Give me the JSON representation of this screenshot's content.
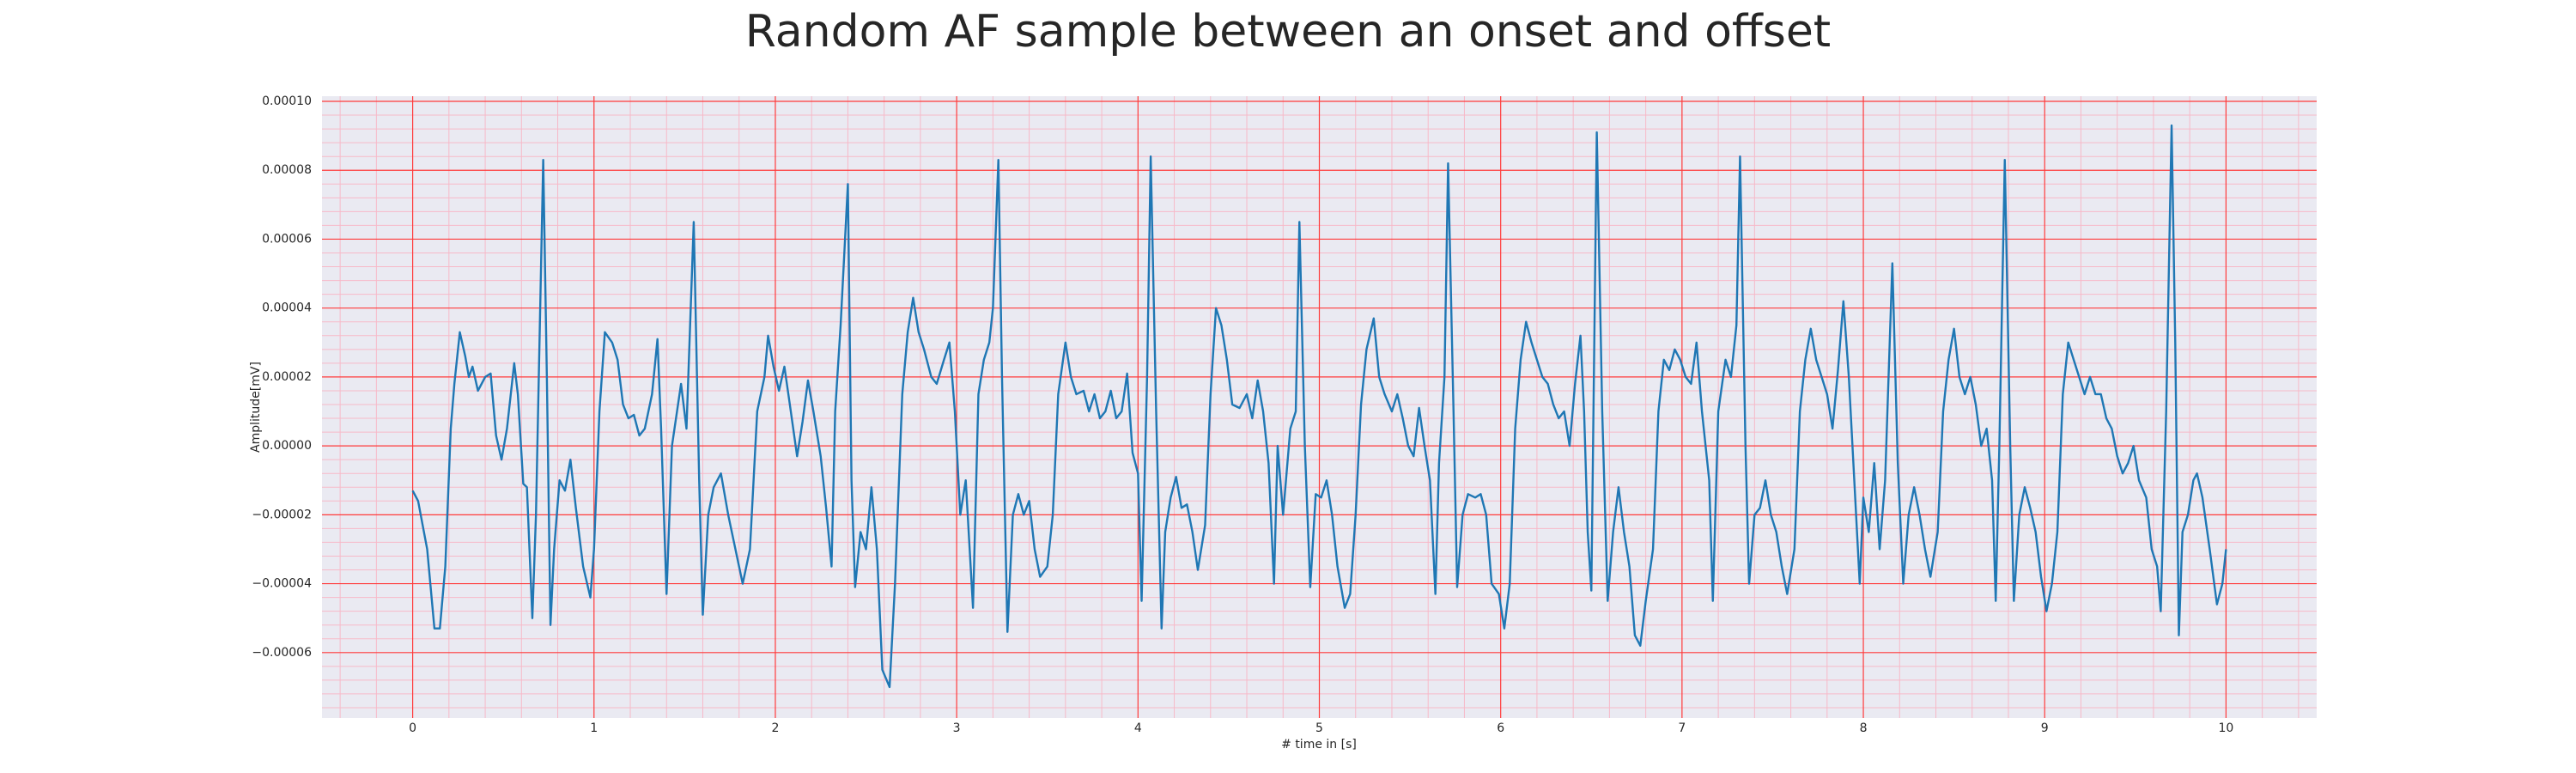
{
  "chart_data": {
    "type": "line",
    "title": "Random AF sample between an onset and offset",
    "xlabel": "# time in [s]",
    "ylabel": "Amplitude[mV]",
    "color": "#1f77b4",
    "grid": true,
    "grid_color": "#ff3b3b",
    "minor_grid": {
      "x_step": 0.2,
      "y_step": 4e-06,
      "color": "#f7b9c8"
    },
    "xlim": [
      -0.5,
      10.5
    ],
    "xticks": [
      0,
      1,
      2,
      3,
      4,
      5,
      6,
      7,
      8,
      9,
      10
    ],
    "ylim": [
      -7.9e-05,
      0.0001015
    ],
    "yticks": [
      {
        "value": -6e-05,
        "label": "−0.00006"
      },
      {
        "value": -4e-05,
        "label": "−0.00004"
      },
      {
        "value": -2e-05,
        "label": "−0.00002"
      },
      {
        "value": 0,
        "label": "0.00000"
      },
      {
        "value": 2e-05,
        "label": "0.00002"
      },
      {
        "value": 4e-05,
        "label": "0.00004"
      },
      {
        "value": 6e-05,
        "label": "0.00006"
      },
      {
        "value": 8e-05,
        "label": "0.00008"
      },
      {
        "value": 0.0001,
        "label": "0.00010"
      }
    ],
    "x": [
      0.0,
      0.03,
      0.08,
      0.12,
      0.15,
      0.18,
      0.21,
      0.23,
      0.26,
      0.29,
      0.31,
      0.33,
      0.36,
      0.4,
      0.43,
      0.46,
      0.49,
      0.52,
      0.56,
      0.58,
      0.61,
      0.63,
      0.66,
      0.68,
      0.72,
      0.74,
      0.76,
      0.78,
      0.81,
      0.84,
      0.87,
      0.9,
      0.94,
      0.98,
      1.0,
      1.03,
      1.06,
      1.1,
      1.13,
      1.16,
      1.19,
      1.22,
      1.25,
      1.28,
      1.32,
      1.35,
      1.37,
      1.4,
      1.43,
      1.48,
      1.51,
      1.55,
      1.58,
      1.6,
      1.63,
      1.66,
      1.7,
      1.74,
      1.78,
      1.82,
      1.86,
      1.9,
      1.94,
      1.96,
      1.99,
      2.02,
      2.05,
      2.08,
      2.12,
      2.15,
      2.18,
      2.21,
      2.25,
      2.28,
      2.31,
      2.33,
      2.36,
      2.4,
      2.42,
      2.44,
      2.47,
      2.5,
      2.53,
      2.56,
      2.59,
      2.63,
      2.66,
      2.7,
      2.73,
      2.76,
      2.79,
      2.82,
      2.86,
      2.89,
      2.93,
      2.96,
      2.99,
      3.02,
      3.05,
      3.09,
      3.12,
      3.15,
      3.18,
      3.2,
      3.23,
      3.25,
      3.28,
      3.31,
      3.34,
      3.37,
      3.4,
      3.43,
      3.46,
      3.5,
      3.53,
      3.56,
      3.6,
      3.63,
      3.66,
      3.7,
      3.73,
      3.76,
      3.79,
      3.82,
      3.85,
      3.88,
      3.91,
      3.94,
      3.97,
      4.0,
      4.02,
      4.05,
      4.07,
      4.1,
      4.13,
      4.15,
      4.18,
      4.21,
      4.24,
      4.27,
      4.3,
      4.33,
      4.37,
      4.4,
      4.43,
      4.46,
      4.49,
      4.52,
      4.56,
      4.6,
      4.63,
      4.66,
      4.69,
      4.72,
      4.75,
      4.77,
      4.8,
      4.84,
      4.87,
      4.89,
      4.92,
      4.95,
      4.98,
      5.01,
      5.04,
      5.07,
      5.1,
      5.14,
      5.17,
      5.2,
      5.23,
      5.26,
      5.3,
      5.33,
      5.36,
      5.4,
      5.43,
      5.46,
      5.49,
      5.52,
      5.55,
      5.58,
      5.61,
      5.64,
      5.66,
      5.69,
      5.71,
      5.74,
      5.76,
      5.79,
      5.82,
      5.86,
      5.89,
      5.92,
      5.95,
      5.99,
      6.02,
      6.05,
      6.08,
      6.11,
      6.14,
      6.17,
      6.2,
      6.23,
      6.26,
      6.29,
      6.32,
      6.35,
      6.38,
      6.41,
      6.44,
      6.46,
      6.48,
      6.5,
      6.53,
      6.56,
      6.59,
      6.62,
      6.65,
      6.68,
      6.71,
      6.74,
      6.77,
      6.8,
      6.84,
      6.87,
      6.9,
      6.93,
      6.96,
      6.99,
      7.02,
      7.05,
      7.08,
      7.11,
      7.15,
      7.17,
      7.2,
      7.24,
      7.27,
      7.3,
      7.32,
      7.35,
      7.37,
      7.4,
      7.43,
      7.46,
      7.49,
      7.52,
      7.55,
      7.58,
      7.62,
      7.65,
      7.68,
      7.71,
      7.74,
      7.77,
      7.8,
      7.83,
      7.86,
      7.89,
      7.92,
      7.95,
      7.98,
      8.0,
      8.03,
      8.06,
      8.09,
      8.12,
      8.16,
      8.19,
      8.22,
      8.25,
      8.28,
      8.31,
      8.34,
      8.37,
      8.41,
      8.44,
      8.47,
      8.5,
      8.53,
      8.56,
      8.59,
      8.62,
      8.65,
      8.68,
      8.71,
      8.73,
      8.75,
      8.78,
      8.81,
      8.83,
      8.86,
      8.89,
      8.92,
      8.95,
      8.98,
      9.01,
      9.04,
      9.07,
      9.1,
      9.13,
      9.16,
      9.19,
      9.22,
      9.25,
      9.28,
      9.31,
      9.34,
      9.37,
      9.4,
      9.43,
      9.46,
      9.49,
      9.52,
      9.56,
      9.59,
      9.62,
      9.64,
      9.67,
      9.7,
      9.72,
      9.74,
      9.76,
      9.79,
      9.82,
      9.84,
      9.87,
      9.91,
      9.95,
      9.98,
      10.0
    ],
    "values": [
      -1.3e-05,
      -1.6e-05,
      -3e-05,
      -5.3e-05,
      -5.3e-05,
      -3.5e-05,
      5e-06,
      1.8e-05,
      3.3e-05,
      2.6e-05,
      2e-05,
      2.3e-05,
      1.6e-05,
      2e-05,
      2.1e-05,
      3e-06,
      -4e-06,
      5e-06,
      2.4e-05,
      1.5e-05,
      -1.1e-05,
      -1.2e-05,
      -5e-05,
      -2e-05,
      8.3e-05,
      2e-05,
      -5.2e-05,
      -3e-05,
      -1e-05,
      -1.3e-05,
      -4e-06,
      -1.8e-05,
      -3.5e-05,
      -4.4e-05,
      -3e-05,
      1e-05,
      3.3e-05,
      3e-05,
      2.5e-05,
      1.2e-05,
      8e-06,
      9e-06,
      3e-06,
      5e-06,
      1.5e-05,
      3.1e-05,
      5e-06,
      -4.3e-05,
      0.0,
      1.8e-05,
      5e-06,
      6.5e-05,
      -1e-05,
      -4.9e-05,
      -2e-05,
      -1.2e-05,
      -8e-06,
      -2e-05,
      -3e-05,
      -4e-05,
      -3e-05,
      1e-05,
      2e-05,
      3.2e-05,
      2.3e-05,
      1.6e-05,
      2.3e-05,
      1.2e-05,
      -3e-06,
      7e-06,
      1.9e-05,
      1e-05,
      -3e-06,
      -1.8e-05,
      -3.5e-05,
      1e-05,
      3.5e-05,
      7.6e-05,
      -1e-05,
      -4.1e-05,
      -2.5e-05,
      -3e-05,
      -1.2e-05,
      -3e-05,
      -6.5e-05,
      -7e-05,
      -4e-05,
      1.5e-05,
      3.3e-05,
      4.3e-05,
      3.3e-05,
      2.8e-05,
      2e-05,
      1.8e-05,
      2.5e-05,
      3e-05,
      1e-05,
      -2e-05,
      -1e-05,
      -4.7e-05,
      1.5e-05,
      2.5e-05,
      3e-05,
      4e-05,
      8.3e-05,
      2e-05,
      -5.4e-05,
      -2e-05,
      -1.4e-05,
      -2e-05,
      -1.6e-05,
      -3e-05,
      -3.8e-05,
      -3.5e-05,
      -2e-05,
      1.5e-05,
      3e-05,
      2e-05,
      1.5e-05,
      1.6e-05,
      1e-05,
      1.5e-05,
      8e-06,
      1e-05,
      1.6e-05,
      8e-06,
      1e-05,
      2.1e-05,
      -2e-06,
      -8e-06,
      -4.5e-05,
      2e-05,
      8.4e-05,
      1e-05,
      -5.3e-05,
      -2.5e-05,
      -1.5e-05,
      -9e-06,
      -1.8e-05,
      -1.7e-05,
      -2.5e-05,
      -3.6e-05,
      -2.3e-05,
      1.5e-05,
      4e-05,
      3.5e-05,
      2.5e-05,
      1.2e-05,
      1.1e-05,
      1.5e-05,
      8e-06,
      1.9e-05,
      1e-05,
      -5e-06,
      -4e-05,
      0.0,
      -2e-05,
      5e-06,
      1e-05,
      6.5e-05,
      0.0,
      -4.1e-05,
      -1.4e-05,
      -1.5e-05,
      -1e-05,
      -2e-05,
      -3.5e-05,
      -4.7e-05,
      -4.3e-05,
      -2e-05,
      1.2e-05,
      2.8e-05,
      3.7e-05,
      2e-05,
      1.5e-05,
      1e-05,
      1.5e-05,
      8e-06,
      0.0,
      -3e-06,
      1.1e-05,
      0.0,
      -1e-05,
      -4.3e-05,
      -5e-06,
      2e-05,
      8.2e-05,
      1e-05,
      -4.1e-05,
      -2e-05,
      -1.4e-05,
      -1.5e-05,
      -1.4e-05,
      -2e-05,
      -4e-05,
      -4.3e-05,
      -5.3e-05,
      -4e-05,
      5e-06,
      2.5e-05,
      3.6e-05,
      3e-05,
      2.5e-05,
      2e-05,
      1.8e-05,
      1.2e-05,
      8e-06,
      1e-05,
      0.0,
      1.8e-05,
      3.2e-05,
      1e-05,
      -2.5e-05,
      -4.2e-05,
      9.1e-05,
      1e-05,
      -4.5e-05,
      -2.5e-05,
      -1.2e-05,
      -2.5e-05,
      -3.5e-05,
      -5.5e-05,
      -5.8e-05,
      -4.5e-05,
      -3e-05,
      1e-05,
      2.5e-05,
      2.2e-05,
      2.8e-05,
      2.5e-05,
      2e-05,
      1.8e-05,
      3e-05,
      1e-05,
      -1e-05,
      -4.5e-05,
      1e-05,
      2.5e-05,
      2e-05,
      3.5e-05,
      8.4e-05,
      0.0,
      -4e-05,
      -2e-05,
      -1.8e-05,
      -1e-05,
      -2e-05,
      -2.5e-05,
      -3.5e-05,
      -4.3e-05,
      -3e-05,
      1e-05,
      2.5e-05,
      3.4e-05,
      2.5e-05,
      2e-05,
      1.5e-05,
      5e-06,
      2.2e-05,
      4.2e-05,
      2e-05,
      -1e-05,
      -4e-05,
      -1.5e-05,
      -2.5e-05,
      -5e-06,
      -3e-05,
      -1e-05,
      5.3e-05,
      -5e-06,
      -4e-05,
      -2e-05,
      -1.2e-05,
      -2e-05,
      -3e-05,
      -3.8e-05,
      -2.5e-05,
      1e-05,
      2.5e-05,
      3.4e-05,
      2e-05,
      1.5e-05,
      2e-05,
      1.2e-05,
      0.0,
      5e-06,
      -1e-05,
      -4.5e-05,
      0.0,
      8.3e-05,
      0.0,
      -4.5e-05,
      -2e-05,
      -1.2e-05,
      -1.8e-05,
      -2.5e-05,
      -3.8e-05,
      -4.8e-05,
      -4e-05,
      -2.5e-05,
      1.5e-05,
      3e-05,
      2.5e-05,
      2e-05,
      1.5e-05,
      2e-05,
      1.5e-05,
      1.5e-05,
      8e-06,
      5e-06,
      -3e-06,
      -8e-06,
      -5e-06,
      0.0,
      -1e-05,
      -1.5e-05,
      -3e-05,
      -3.5e-05,
      -4.8e-05,
      1e-05,
      9.3e-05,
      3e-05,
      -5.5e-05,
      -2.5e-05,
      -2e-05,
      -1e-05,
      -8e-06,
      -1.5e-05,
      -3e-05,
      -4.6e-05,
      -4e-05,
      -3e-05
    ]
  }
}
